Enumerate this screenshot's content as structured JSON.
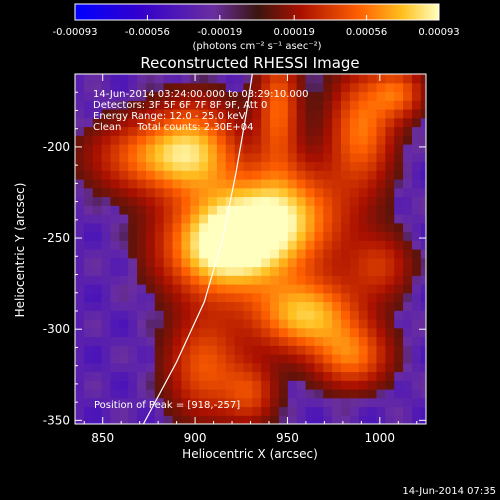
{
  "chart_data": {
    "type": "heatmap",
    "title": "Reconstructed RHESSI Image",
    "xlabel": "Heliocentric X (arcsec)",
    "ylabel": "Heliocentric Y (arcsec)",
    "xlim": [
      835,
      1025
    ],
    "ylim": [
      -352,
      -160
    ],
    "x_ticks": [
      850,
      900,
      950,
      1000
    ],
    "y_ticks": [
      -200,
      -250,
      -300,
      -350
    ],
    "colorbar": {
      "ticks": [
        -0.00093,
        -0.00056,
        -0.00019,
        0.00019,
        0.00056,
        0.00093
      ],
      "tick_labels": [
        "-0.00093",
        "-0.00056",
        "-0.00019",
        "0.00019",
        "0.00056",
        "0.00093"
      ],
      "unit_label": "(photons cm⁻² s⁻¹ asec⁻²)",
      "range": [
        -0.00093,
        0.00093
      ]
    },
    "annotations": [
      "14-Jun-2014 03:24:00.000 to 03:29:10.000",
      "Detectors: 3F 5F 6F 7F 8F 9F, Att 0",
      "Energy Range: 12.0 - 25.0 keV",
      "Clean     Total counts: 2.30E+04"
    ],
    "peak_label": "Position of Peak = [918,-257]",
    "peak": [
      918,
      -257
    ],
    "limb_curve": [
      [
        872,
        -352
      ],
      [
        890,
        -318
      ],
      [
        905,
        -285
      ],
      [
        915,
        -250
      ],
      [
        922,
        -215
      ],
      [
        928,
        -180
      ],
      [
        931,
        -160
      ]
    ],
    "grid": false,
    "emission_sources": [
      {
        "x": 915,
        "y": -255,
        "amp": 1.0,
        "sx": 22,
        "sy": 18
      },
      {
        "x": 945,
        "y": -238,
        "amp": 0.85,
        "sx": 24,
        "sy": 20
      },
      {
        "x": 960,
        "y": -292,
        "amp": 0.8,
        "sx": 20,
        "sy": 14
      },
      {
        "x": 985,
        "y": -315,
        "amp": 0.55,
        "sx": 14,
        "sy": 12
      },
      {
        "x": 875,
        "y": -205,
        "amp": 0.55,
        "sx": 22,
        "sy": 14
      },
      {
        "x": 900,
        "y": -200,
        "amp": 0.6,
        "sx": 16,
        "sy": 18
      },
      {
        "x": 945,
        "y": -178,
        "amp": 0.55,
        "sx": 8,
        "sy": 22
      },
      {
        "x": 990,
        "y": -190,
        "amp": 0.6,
        "sx": 12,
        "sy": 22
      },
      {
        "x": 1010,
        "y": -170,
        "amp": 0.5,
        "sx": 10,
        "sy": 10
      },
      {
        "x": 905,
        "y": -320,
        "amp": 0.5,
        "sx": 14,
        "sy": 20
      },
      {
        "x": 930,
        "y": -335,
        "amp": 0.4,
        "sx": 10,
        "sy": 12
      },
      {
        "x": 1000,
        "y": -265,
        "amp": 0.35,
        "sx": 12,
        "sy": 12
      }
    ]
  },
  "footer": {
    "timestamp": "14-Jun-2014 07:35"
  }
}
